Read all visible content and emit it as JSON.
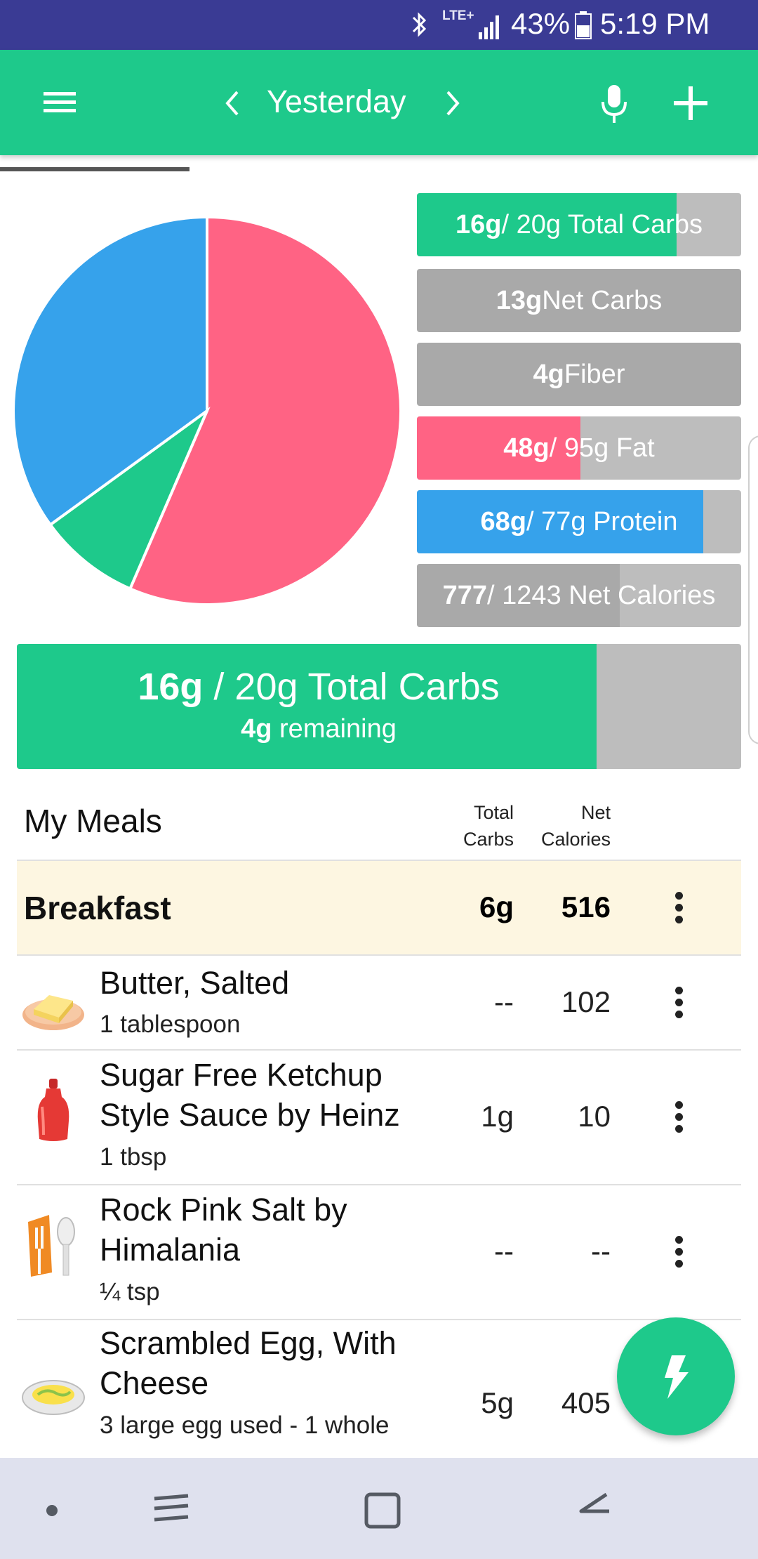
{
  "status_bar": {
    "network": "LTE+",
    "battery": "43%",
    "time": "5:19 PM"
  },
  "app_bar": {
    "date_label": "Yesterday"
  },
  "macros": {
    "total_carbs": {
      "value": "16g",
      "rest": " / 20g Total Carbs",
      "fraction": 0.8
    },
    "net_carbs": {
      "value": "13g",
      "rest": " Net Carbs"
    },
    "fiber": {
      "value": "4g",
      "rest": " Fiber"
    },
    "fat": {
      "value": "48g",
      "rest": " / 95g Fat",
      "fraction": 0.505
    },
    "protein": {
      "value": "68g",
      "rest": " / 77g Protein",
      "fraction": 0.883
    },
    "net_calories": {
      "value": "777",
      "rest": " / 1243 Net Calories",
      "fraction": 0.625
    }
  },
  "pie": {
    "slices": [
      {
        "name": "fat",
        "percent": 56.5,
        "color": "#ff6384"
      },
      {
        "name": "carbs",
        "percent": 8.5,
        "color": "#1ec98b"
      },
      {
        "name": "protein",
        "percent": 35.0,
        "color": "#36a2eb"
      }
    ]
  },
  "carb_summary": {
    "value": "16g",
    "rest": " / 20g Total Carbs",
    "remaining_value": "4g",
    "remaining_text": " remaining",
    "fraction": 0.8
  },
  "meals": {
    "title": "My Meals",
    "col_carbs_line1": "Total",
    "col_carbs_line2": "Carbs",
    "col_cal_line1": "Net",
    "col_cal_line2": "Calories",
    "breakfast": {
      "name": "Breakfast",
      "carbs": "6g",
      "calories": "516"
    },
    "items": [
      {
        "name_line1": "Butter, Salted",
        "name_line2": "",
        "serving": "1 tablespoon",
        "carbs": "--",
        "calories": "102",
        "icon": "butter-icon"
      },
      {
        "name_line1": "Sugar Free Ketchup",
        "name_line2": "Style Sauce by Heinz",
        "serving": "1 tbsp",
        "carbs": "1g",
        "calories": "10",
        "icon": "ketchup-bottle-icon"
      },
      {
        "name_line1": "Rock Pink Salt by",
        "name_line2": "Himalania",
        "serving": "¼ tsp",
        "carbs": "--",
        "calories": "--",
        "icon": "cutlery-icon"
      },
      {
        "name_line1": "Scrambled Egg, With",
        "name_line2": "Cheese",
        "serving": "3 large egg used - 1 whole",
        "carbs": "5g",
        "calories": "405",
        "icon": "scrambled-egg-icon"
      }
    ]
  },
  "colors": {
    "primary": "#1ec98b",
    "status_bar": "#3a3b94",
    "fat": "#ff6384",
    "protein": "#36a2eb",
    "bar_track": "#bdbdbd",
    "breakfast_bg": "#fdf6e1"
  }
}
